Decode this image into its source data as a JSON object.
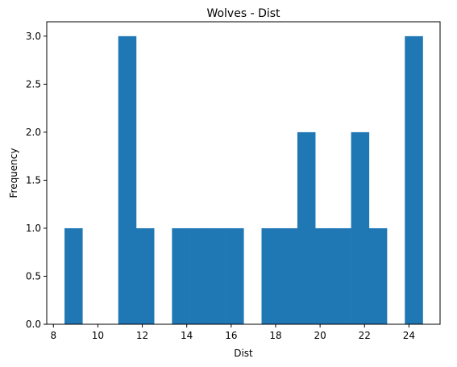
{
  "chart_data": {
    "type": "bar",
    "title": "Wolves - Dist",
    "xlabel": "Dist",
    "ylabel": "Frequency",
    "bin_start": 8.5,
    "bin_width": 0.806,
    "bins": 20,
    "counts": [
      1,
      0,
      0,
      3,
      1,
      0,
      1,
      1,
      1,
      1,
      0,
      1,
      1,
      2,
      1,
      1,
      2,
      1,
      0,
      3
    ],
    "xlim": [
      7.7,
      25.4
    ],
    "ylim": [
      0,
      3.15
    ],
    "xticks": [
      8,
      10,
      12,
      14,
      16,
      18,
      20,
      22,
      24
    ],
    "yticks": [
      0.0,
      0.5,
      1.0,
      1.5,
      2.0,
      2.5,
      3.0
    ],
    "bar_color": "#1f77b4",
    "grid": false
  }
}
